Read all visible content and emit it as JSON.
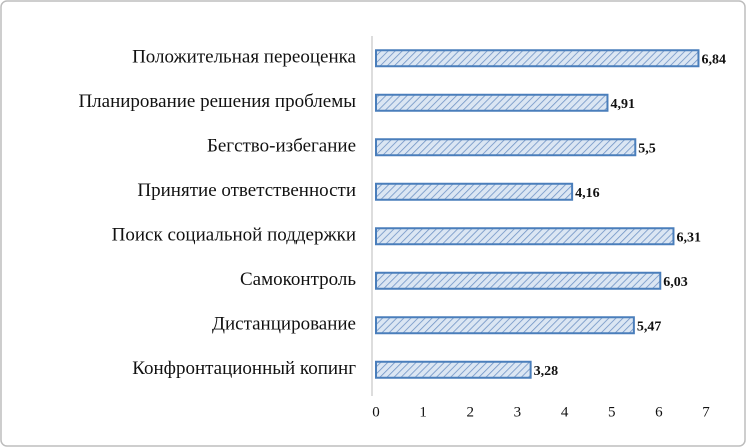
{
  "chart_data": {
    "type": "barh",
    "categories": [
      "Положительная переоценка",
      "Планирование решения проблемы",
      "Бегство-избегание",
      "Принятие ответственности",
      "Поиск социальной поддержки",
      "Самоконтроль",
      "Дистанцирование",
      "Конфронтационный копинг"
    ],
    "values": [
      6.84,
      4.91,
      5.5,
      4.16,
      6.31,
      6.03,
      5.47,
      3.28
    ],
    "value_labels": [
      "6,84",
      "4,91",
      "5,5",
      "4,16",
      "6,31",
      "6,03",
      "5,47",
      "3,28"
    ],
    "color": "#4a7ebb",
    "xlim": [
      0,
      7
    ],
    "xticks": [
      0,
      1,
      2,
      3,
      4,
      5,
      6,
      7
    ]
  }
}
